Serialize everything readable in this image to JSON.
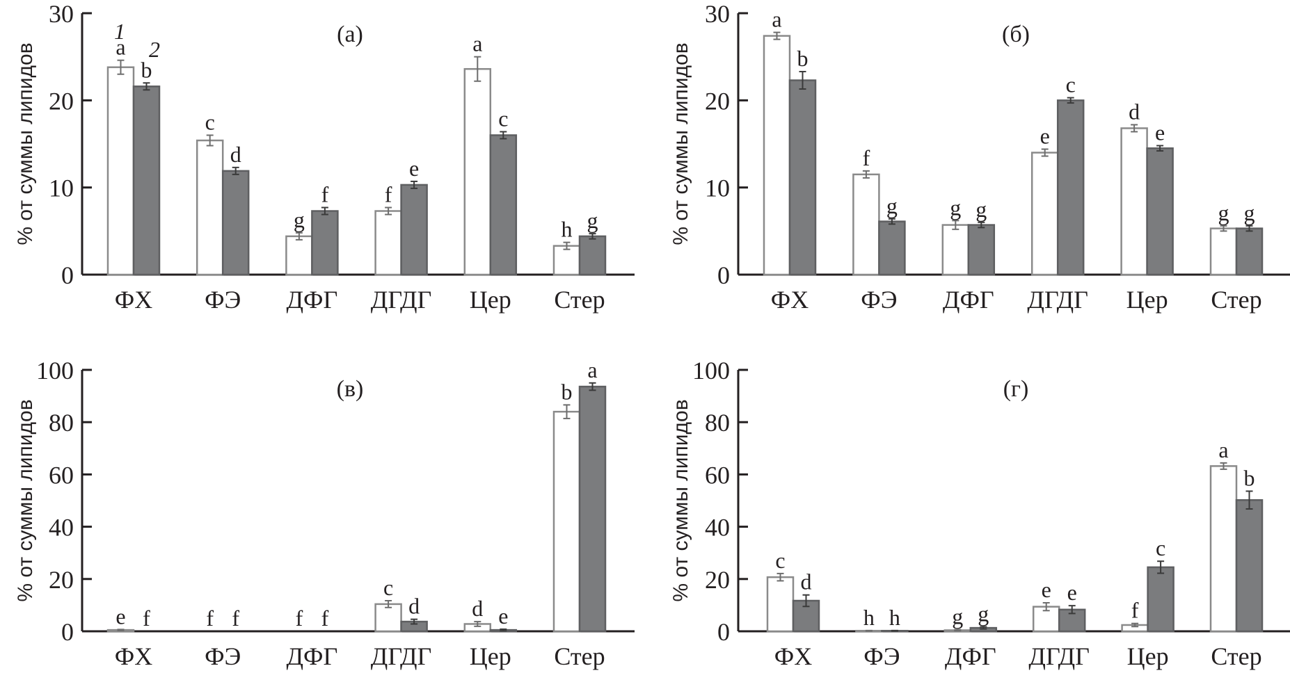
{
  "chart_data": [
    {
      "type": "bar",
      "title": "(а)",
      "xlabel": "",
      "ylabel": "% от суммы липидов",
      "ylim": [
        0,
        30
      ],
      "yticks": [
        0,
        10,
        20,
        30
      ],
      "categories": [
        "ФХ",
        "ФЭ",
        "ДФГ",
        "ДГДГ",
        "Цер",
        "Стер"
      ],
      "legend": [
        "1",
        "2"
      ],
      "legend_placement": "top-left (above first category)",
      "grid": false,
      "series": [
        {
          "name": "1",
          "values": [
            23.8,
            15.4,
            4.4,
            7.3,
            23.6,
            3.3
          ],
          "errors": [
            0.8,
            0.6,
            0.4,
            0.4,
            1.4,
            0.4
          ],
          "letters": [
            "a",
            "c",
            "g",
            "f",
            "a",
            "h"
          ]
        },
        {
          "name": "2",
          "values": [
            21.6,
            11.9,
            7.3,
            10.3,
            16.0,
            4.4
          ],
          "errors": [
            0.4,
            0.4,
            0.4,
            0.4,
            0.4,
            0.3
          ],
          "letters": [
            "b",
            "d",
            "f",
            "e",
            "c",
            "g"
          ]
        }
      ]
    },
    {
      "type": "bar",
      "title": "(б)",
      "xlabel": "",
      "ylabel": "% от суммы липидов",
      "ylim": [
        0,
        30
      ],
      "yticks": [
        0,
        10,
        20,
        30
      ],
      "categories": [
        "ФХ",
        "ФЭ",
        "ДФГ",
        "ДГДГ",
        "Цер",
        "Стер"
      ],
      "grid": false,
      "series": [
        {
          "name": "1",
          "values": [
            27.4,
            11.5,
            5.7,
            14.0,
            16.8,
            5.3
          ],
          "errors": [
            0.4,
            0.4,
            0.5,
            0.4,
            0.4,
            0.3
          ],
          "letters": [
            "a",
            "f",
            "g",
            "e",
            "d",
            "g"
          ]
        },
        {
          "name": "2",
          "values": [
            22.3,
            6.1,
            5.7,
            20.0,
            14.5,
            5.3
          ],
          "errors": [
            1.0,
            0.3,
            0.3,
            0.3,
            0.3,
            0.3
          ],
          "letters": [
            "b",
            "g",
            "g",
            "c",
            "e",
            "g"
          ]
        }
      ]
    },
    {
      "type": "bar",
      "title": "(в)",
      "xlabel": "",
      "ylabel": "% от суммы липидов",
      "ylim": [
        0,
        100
      ],
      "yticks": [
        0,
        20,
        40,
        60,
        80,
        100
      ],
      "categories": [
        "ФХ",
        "ФЭ",
        "ДФГ",
        "ДГДГ",
        "Цер",
        "Стер"
      ],
      "grid": false,
      "series": [
        {
          "name": "1",
          "values": [
            0.5,
            0.0,
            0.0,
            10.4,
            2.8,
            84.0
          ],
          "errors": [
            0.2,
            0,
            0,
            1.3,
            0.9,
            2.6
          ],
          "letters": [
            "e",
            "f",
            "f",
            "c",
            "d",
            "b"
          ]
        },
        {
          "name": "2",
          "values": [
            0.0,
            0.0,
            0.0,
            3.7,
            0.5,
            93.6
          ],
          "errors": [
            0,
            0,
            0,
            0.9,
            0.3,
            1.4
          ],
          "letters": [
            "f",
            "f",
            "f",
            "d",
            "e",
            "a"
          ]
        }
      ]
    },
    {
      "type": "bar",
      "title": "(г)",
      "xlabel": "",
      "ylabel": "% от суммы липидов",
      "ylim": [
        0,
        100
      ],
      "yticks": [
        0,
        20,
        40,
        60,
        80,
        100
      ],
      "categories": [
        "ФХ",
        "ФЭ",
        "ДФГ",
        "ДГДГ",
        "Цер",
        "Стер"
      ],
      "grid": false,
      "series": [
        {
          "name": "1",
          "values": [
            20.7,
            0.2,
            0.4,
            9.4,
            2.4,
            63.2
          ],
          "errors": [
            1.4,
            0.1,
            0.2,
            1.5,
            0.6,
            1.2
          ],
          "letters": [
            "c",
            "h",
            "g",
            "e",
            "f",
            "a"
          ]
        },
        {
          "name": "2",
          "values": [
            11.7,
            0.2,
            1.3,
            8.3,
            24.5,
            50.2
          ],
          "errors": [
            2.2,
            0.1,
            0.4,
            1.5,
            2.3,
            3.4
          ],
          "letters": [
            "d",
            "h",
            "g",
            "e",
            "c",
            "b"
          ]
        }
      ]
    }
  ],
  "colors": {
    "series1_fill": "#ffffff",
    "series1_stroke": "#8a8a8a",
    "series2_fill": "#7b7c7e",
    "axis": "#231f20"
  }
}
